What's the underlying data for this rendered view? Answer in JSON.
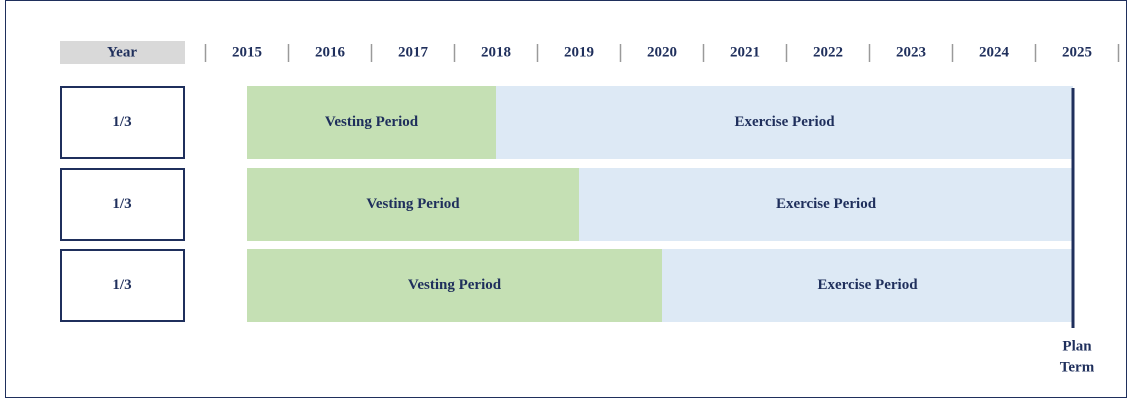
{
  "header": {
    "label": "Year",
    "years": [
      "2015",
      "2016",
      "2017",
      "2018",
      "2019",
      "2020",
      "2021",
      "2022",
      "2023",
      "2024",
      "2025"
    ]
  },
  "rows": [
    {
      "share": "1/3",
      "vesting": "Vesting Period",
      "exercise": "Exercise Period"
    },
    {
      "share": "1/3",
      "vesting": "Vesting Period",
      "exercise": "Exercise Period"
    },
    {
      "share": "1/3",
      "vesting": "Vesting Period",
      "exercise": "Exercise Period"
    }
  ],
  "plan_term": [
    "Plan",
    "Term"
  ]
}
